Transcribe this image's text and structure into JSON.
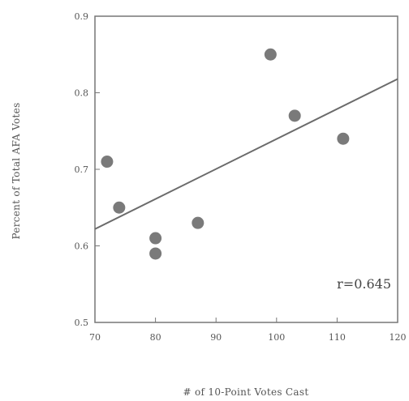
{
  "chart_data": {
    "type": "scatter",
    "xlabel": "# of 10-Point Votes Cast",
    "ylabel": "Percent of Total AFA Votes",
    "xlim": [
      70,
      120
    ],
    "ylim": [
      0.5,
      0.9
    ],
    "xticks": [
      70,
      80,
      90,
      100,
      110,
      120
    ],
    "yticks": [
      0.5,
      0.6,
      0.7,
      0.8,
      0.9
    ],
    "x_tick_labels": [
      "70",
      "80",
      "90",
      "100",
      "110",
      "120"
    ],
    "y_tick_labels": [
      "0.5",
      "0.6",
      "0.7",
      "0.8",
      "0.9"
    ],
    "points": [
      {
        "x": 72,
        "y": 0.71
      },
      {
        "x": 74,
        "y": 0.65
      },
      {
        "x": 80,
        "y": 0.61
      },
      {
        "x": 80,
        "y": 0.59
      },
      {
        "x": 87,
        "y": 0.63
      },
      {
        "x": 99,
        "y": 0.85
      },
      {
        "x": 103,
        "y": 0.77
      },
      {
        "x": 111,
        "y": 0.74
      }
    ],
    "trendline": {
      "x": [
        70,
        120
      ],
      "y": [
        0.622,
        0.818
      ]
    },
    "annotation": "r=0.645",
    "grid": false,
    "legend": "none",
    "colors": {
      "point": "#7a7a7a",
      "line": "#6b6b6b",
      "axis": "#777777"
    }
  }
}
